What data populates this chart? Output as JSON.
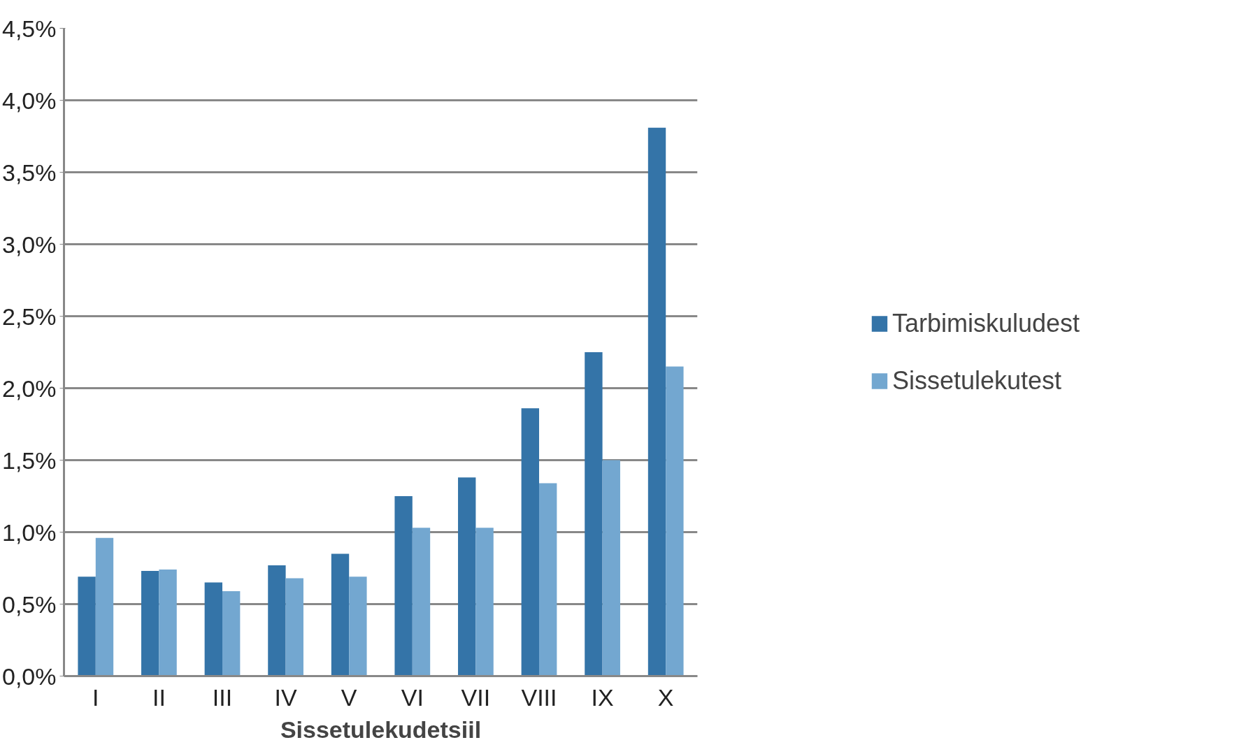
{
  "chart_data": {
    "type": "bar",
    "xlabel": "Sissetulekudetsiil",
    "categories": [
      "I",
      "II",
      "III",
      "IV",
      "V",
      "VI",
      "VII",
      "VIII",
      "IX",
      "X"
    ],
    "series": [
      {
        "name": "Tarbimiskuludest",
        "color": "#3474a8",
        "values": [
          0.69,
          0.73,
          0.65,
          0.77,
          0.85,
          1.25,
          1.38,
          1.86,
          2.25,
          3.81
        ]
      },
      {
        "name": "Sissetulekutest",
        "color": "#73a7d0",
        "values": [
          0.96,
          0.74,
          0.59,
          0.68,
          0.69,
          1.03,
          1.03,
          1.34,
          1.5,
          2.15
        ]
      }
    ],
    "ylim": [
      0,
      4.5
    ],
    "yticks": [
      {
        "value": 0,
        "label": "0,0%"
      },
      {
        "value": 0.5,
        "label": "0,5%"
      },
      {
        "value": 1,
        "label": "1,0%"
      },
      {
        "value": 1.5,
        "label": "1,5%"
      },
      {
        "value": 2,
        "label": "2,0%"
      },
      {
        "value": 2.5,
        "label": "2,5%"
      },
      {
        "value": 3,
        "label": "3,0%"
      },
      {
        "value": 3.5,
        "label": "3,5%"
      },
      {
        "value": 4,
        "label": "4,0%"
      },
      {
        "value": 4.5,
        "label": "4,5%"
      }
    ],
    "grid": "y",
    "legend": "right"
  }
}
